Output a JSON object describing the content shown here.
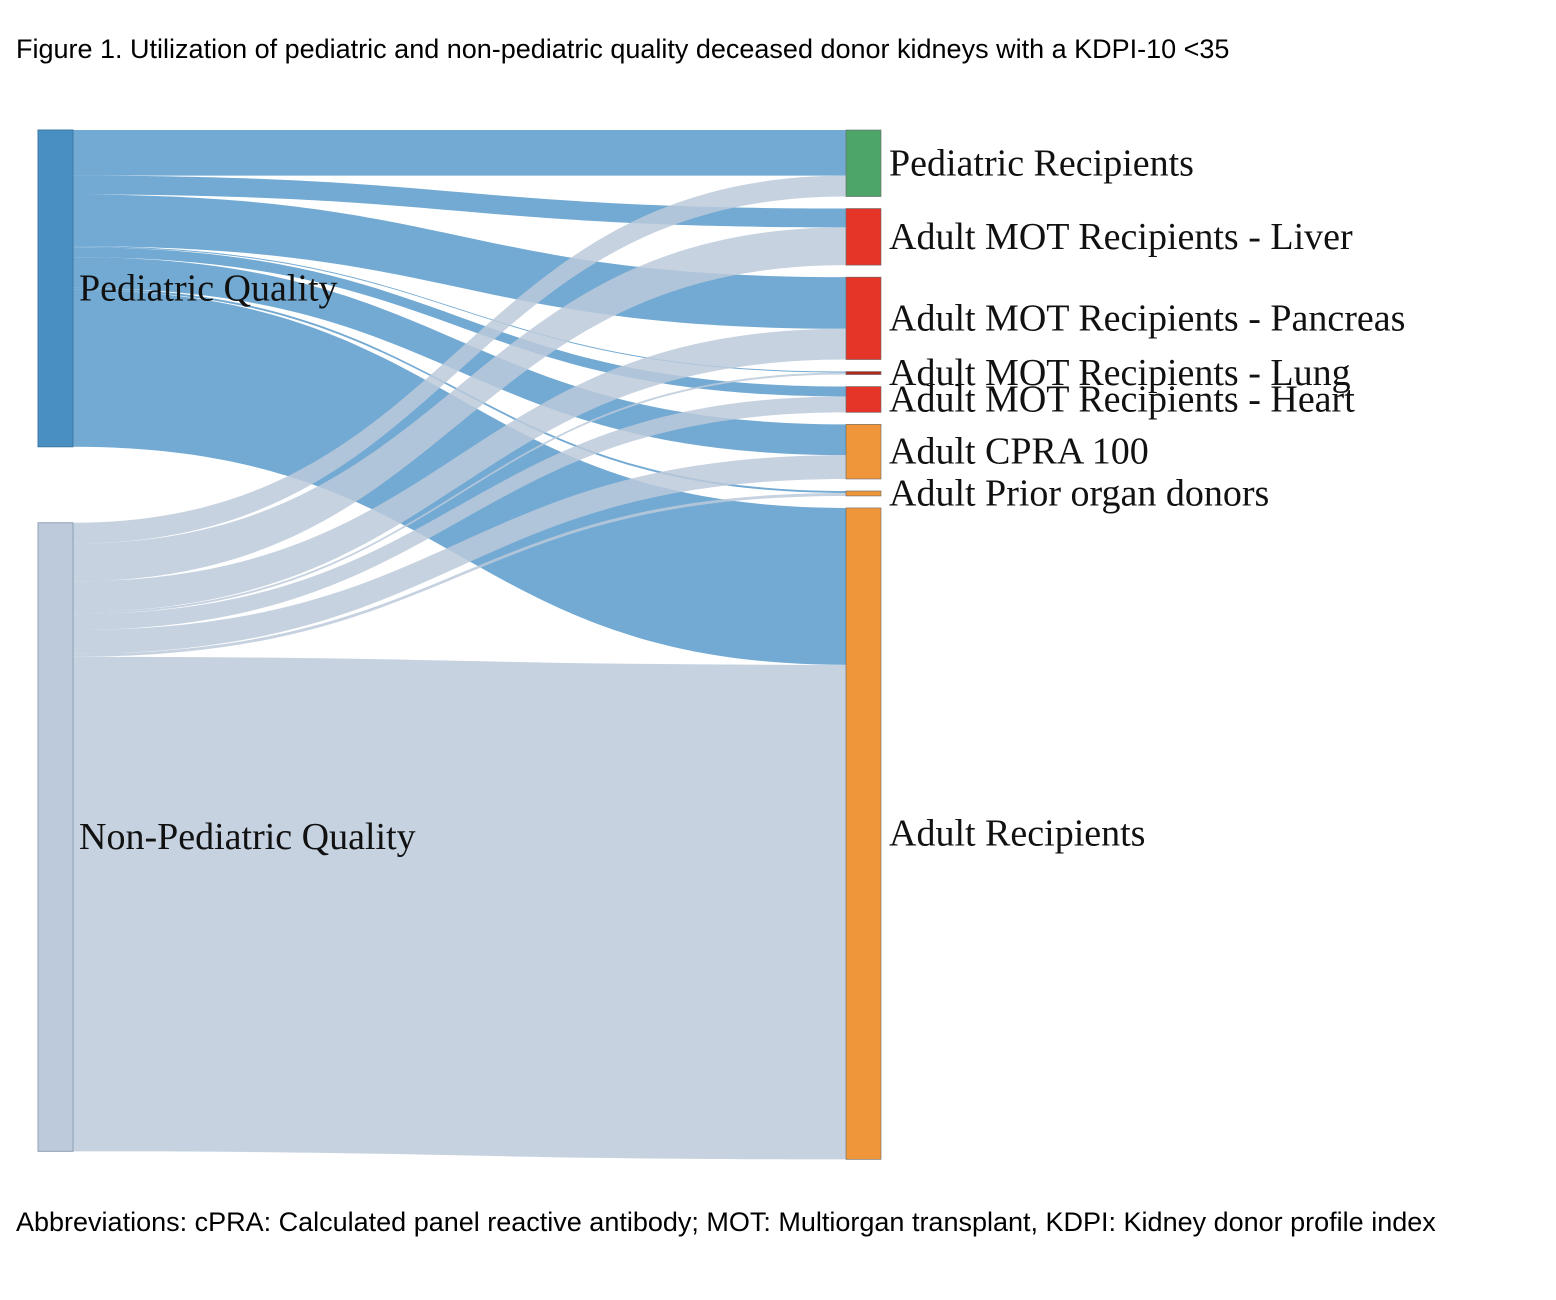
{
  "title": "Figure 1. Utilization of pediatric and non-pediatric quality deceased donor kidneys with a KDPI-10 <35",
  "footnote": "Abbreviations: cPRA: Calculated panel reactive antibody; MOT: Multiorgan transplant, KDPI: Kidney donor profile index",
  "chart_data": {
    "type": "sankey",
    "sources": [
      {
        "id": "ped",
        "label": "Pediatric Quality",
        "color": "#4a8fc1"
      },
      {
        "id": "non",
        "label": "Non-Pediatric Quality",
        "color": "#bccadb"
      }
    ],
    "targets": [
      {
        "id": "pedrec",
        "label": "Pediatric Recipients",
        "color": "#4ea56a"
      },
      {
        "id": "liver",
        "label": "Adult MOT Recipients - Liver",
        "color": "#e53529"
      },
      {
        "id": "pancreas",
        "label": "Adult MOT Recipients - Pancreas",
        "color": "#e53529"
      },
      {
        "id": "lung",
        "label": "Adult MOT Recipients - Lung",
        "color": "#b5261c"
      },
      {
        "id": "heart",
        "label": "Adult MOT Recipients - Heart",
        "color": "#e53529"
      },
      {
        "id": "cpra",
        "label": "Adult CPRA 100",
        "color": "#f0963a"
      },
      {
        "id": "prior",
        "label": "Adult Prior organ donors",
        "color": "#f0963a"
      },
      {
        "id": "adult",
        "label": "Adult Recipients",
        "color": "#f0963a"
      }
    ],
    "link_colors": {
      "ped": "#5a9bcb",
      "non": "#bccadb"
    },
    "links": [
      {
        "source": "ped",
        "target": "pedrec",
        "value": 46
      },
      {
        "source": "ped",
        "target": "liver",
        "value": 19
      },
      {
        "source": "ped",
        "target": "pancreas",
        "value": 52
      },
      {
        "source": "ped",
        "target": "lung",
        "value": 1
      },
      {
        "source": "ped",
        "target": "heart",
        "value": 10
      },
      {
        "source": "ped",
        "target": "cpra",
        "value": 31
      },
      {
        "source": "ped",
        "target": "prior",
        "value": 2
      },
      {
        "source": "ped",
        "target": "adult",
        "value": 158
      },
      {
        "source": "non",
        "target": "pedrec",
        "value": 21
      },
      {
        "source": "non",
        "target": "liver",
        "value": 38
      },
      {
        "source": "non",
        "target": "pancreas",
        "value": 31
      },
      {
        "source": "non",
        "target": "lung",
        "value": 2
      },
      {
        "source": "non",
        "target": "heart",
        "value": 16
      },
      {
        "source": "non",
        "target": "cpra",
        "value": 24
      },
      {
        "source": "non",
        "target": "prior",
        "value": 3
      },
      {
        "source": "non",
        "target": "adult",
        "value": 498
      }
    ]
  }
}
